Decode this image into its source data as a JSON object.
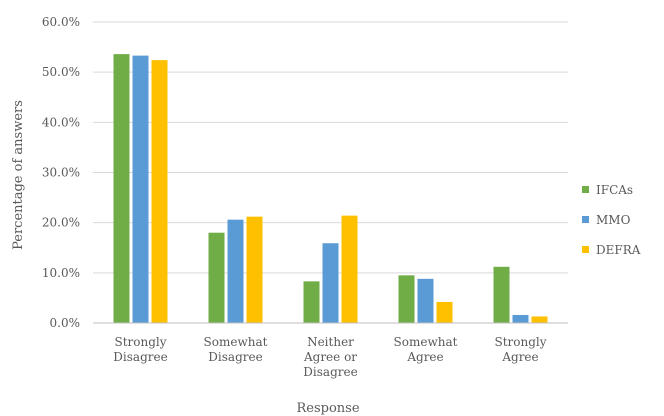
{
  "chart_data": {
    "type": "bar",
    "xlabel": "Response",
    "ylabel": "Percentage of answers",
    "ylim": [
      0,
      60
    ],
    "yticks": [
      "0.0%",
      "10.0%",
      "20.0%",
      "30.0%",
      "40.0%",
      "50.0%",
      "60.0%"
    ],
    "grid": true,
    "legend_position": "right",
    "categories": [
      [
        "Strongly",
        "Disagree"
      ],
      [
        "Somewhat",
        "Disagree"
      ],
      [
        "Neither",
        "Agree or",
        "Disagree"
      ],
      [
        "Somewhat",
        "Agree"
      ],
      [
        "Strongly",
        "Agree"
      ]
    ],
    "series": [
      {
        "name": "IFCAs",
        "color": "#70AD47",
        "values": [
          53.6,
          18.0,
          8.3,
          9.5,
          11.2
        ]
      },
      {
        "name": "MMO",
        "color": "#5B9BD5",
        "values": [
          53.3,
          20.6,
          15.9,
          8.8,
          1.6
        ]
      },
      {
        "name": "DEFRA",
        "color": "#FFC000",
        "values": [
          52.4,
          21.2,
          21.4,
          4.2,
          1.3
        ]
      }
    ]
  }
}
